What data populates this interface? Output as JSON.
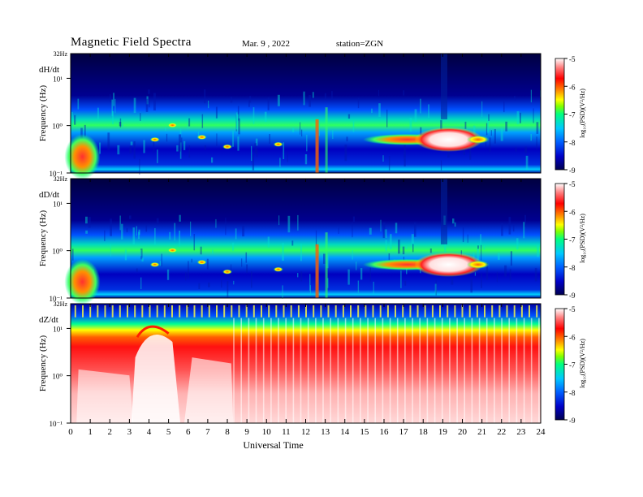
{
  "header": {
    "title": "Magnetic  Field  Spectra",
    "date": "Mar. 9  , 2022",
    "station": "station=ZGN"
  },
  "chart_data": [
    {
      "type": "heatmap",
      "panel_label": "dH/dt",
      "ylabel": "Frequency  (Hz)",
      "xlabel": "Universal  Time",
      "y_scale": "log",
      "y_top_label": "32Hz",
      "y_tick_labels": [
        "10¹",
        "10⁰",
        "10⁻¹"
      ],
      "x_range": [
        0,
        24
      ],
      "x_ticks": [
        0,
        1,
        2,
        3,
        4,
        5,
        6,
        7,
        8,
        9,
        10,
        11,
        12,
        13,
        14,
        15,
        16,
        17,
        18,
        19,
        20,
        21,
        22,
        23,
        24
      ],
      "colorbar": {
        "range": [
          -9,
          -5
        ],
        "ticks": [
          "-5",
          "-6",
          "-7",
          "-8",
          "-9"
        ],
        "label": "log₁₀(PSD)(V²/Hz)"
      }
    },
    {
      "type": "heatmap",
      "panel_label": "dD/dt",
      "ylabel": "Frequency  (Hz)",
      "xlabel": "Universal  Time",
      "y_scale": "log",
      "y_top_label": "32Hz",
      "y_tick_labels": [
        "10¹",
        "10⁰",
        "10⁻¹"
      ],
      "x_range": [
        0,
        24
      ],
      "x_ticks": [
        0,
        1,
        2,
        3,
        4,
        5,
        6,
        7,
        8,
        9,
        10,
        11,
        12,
        13,
        14,
        15,
        16,
        17,
        18,
        19,
        20,
        21,
        22,
        23,
        24
      ],
      "colorbar": {
        "range": [
          -9,
          -5
        ],
        "ticks": [
          "-5",
          "-6",
          "-7",
          "-8",
          "-9"
        ],
        "label": "log₁₀(PSD)(V²/Hz)"
      }
    },
    {
      "type": "heatmap",
      "panel_label": "dZ/dt",
      "ylabel": "Frequency  (Hz)",
      "xlabel": "Universal  Time",
      "y_scale": "log",
      "y_top_label": "32Hz",
      "y_tick_labels": [
        "10¹",
        "10⁰",
        "10⁻¹"
      ],
      "x_range": [
        0,
        24
      ],
      "x_ticks": [
        0,
        1,
        2,
        3,
        4,
        5,
        6,
        7,
        8,
        9,
        10,
        11,
        12,
        13,
        14,
        15,
        16,
        17,
        18,
        19,
        20,
        21,
        22,
        23,
        24
      ],
      "colorbar": {
        "range": [
          -9,
          -5
        ],
        "ticks": [
          "-5",
          "-6",
          "-7",
          "-8",
          "-9"
        ],
        "label": "log₁₀(PSD)(V²/Hz)"
      }
    }
  ],
  "colors": {
    "scale": [
      "#000050",
      "#0000c8",
      "#0060ff",
      "#00c8ff",
      "#00ff80",
      "#80ff00",
      "#ffff00",
      "#ff8000",
      "#ff0000",
      "#ff8080",
      "#ffffff"
    ]
  }
}
